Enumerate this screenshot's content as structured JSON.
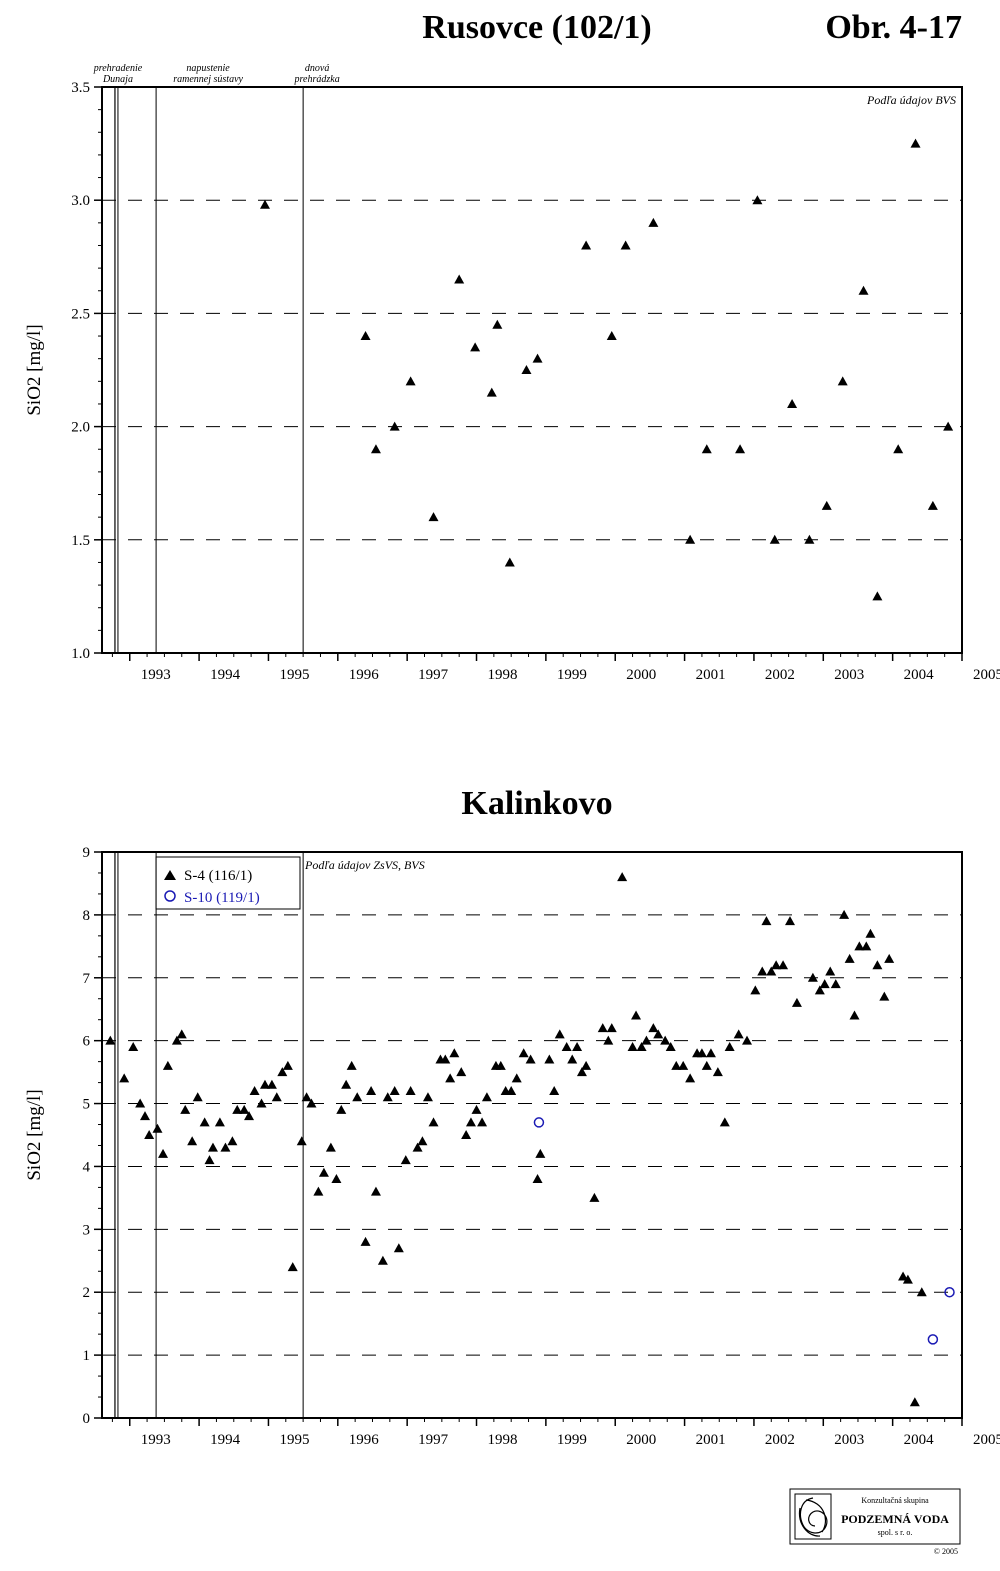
{
  "page": {
    "figure_number": "Obr. 4-17"
  },
  "events": [
    {
      "year": 1992.83,
      "label_lines": [
        "prehradenie",
        "Dunaja"
      ]
    },
    {
      "year": 1993.38,
      "label_lines": [
        "napustenie",
        "ramennej sústavy"
      ]
    },
    {
      "year": 1995.5,
      "label_lines": [
        "dnová",
        "prehrádzka"
      ]
    }
  ],
  "chart_data": [
    {
      "type": "scatter",
      "title": "Rusovce (102/1)",
      "ylabel": "SiO2 [mg/l]",
      "xlabel": "",
      "note": "Podľa údajov BVS",
      "xlim": [
        1992.6,
        2005
      ],
      "ylim": [
        1.0,
        3.5
      ],
      "x_ticks": [
        1993,
        1994,
        1995,
        1996,
        1997,
        1998,
        1999,
        2000,
        2001,
        2002,
        2003,
        2004,
        2005
      ],
      "y_ticks": [
        "1.0",
        "1.5",
        "2.0",
        "2.5",
        "3.0",
        "3.5"
      ],
      "grid": "dashed horizontal",
      "series": [
        {
          "marker": "triangle",
          "color": "#000000",
          "points": [
            [
              1994.95,
              2.98
            ],
            [
              1996.4,
              2.4
            ],
            [
              1996.55,
              1.9
            ],
            [
              1996.82,
              2.0
            ],
            [
              1997.05,
              2.2
            ],
            [
              1997.38,
              1.6
            ],
            [
              1997.75,
              2.65
            ],
            [
              1997.98,
              2.35
            ],
            [
              1998.22,
              2.15
            ],
            [
              1998.3,
              2.45
            ],
            [
              1998.48,
              1.4
            ],
            [
              1998.72,
              2.25
            ],
            [
              1998.88,
              2.3
            ],
            [
              1999.58,
              2.8
            ],
            [
              1999.95,
              2.4
            ],
            [
              2000.15,
              2.8
            ],
            [
              2000.55,
              2.9
            ],
            [
              2001.08,
              1.5
            ],
            [
              2001.32,
              1.9
            ],
            [
              2001.8,
              1.9
            ],
            [
              2002.05,
              3.0
            ],
            [
              2002.3,
              1.5
            ],
            [
              2002.55,
              2.1
            ],
            [
              2002.8,
              1.5
            ],
            [
              2003.05,
              1.65
            ],
            [
              2003.28,
              2.2
            ],
            [
              2003.58,
              2.6
            ],
            [
              2003.78,
              1.25
            ],
            [
              2004.08,
              1.9
            ],
            [
              2004.33,
              3.25
            ],
            [
              2004.58,
              1.65
            ],
            [
              2004.8,
              2.0
            ]
          ]
        }
      ]
    },
    {
      "type": "scatter",
      "title": "Kalinkovo",
      "ylabel": "SiO2 [mg/l]",
      "xlabel": "",
      "note": "Podľa údajov ZsVS, BVS",
      "xlim": [
        1992.6,
        2005
      ],
      "ylim": [
        0,
        9
      ],
      "x_ticks": [
        1993,
        1994,
        1995,
        1996,
        1997,
        1998,
        1999,
        2000,
        2001,
        2002,
        2003,
        2004,
        2005
      ],
      "y_ticks": [
        "0",
        "1",
        "2",
        "3",
        "4",
        "5",
        "6",
        "7",
        "8",
        "9"
      ],
      "grid": "dashed horizontal",
      "legend": "top-left",
      "series": [
        {
          "name": "S-4 (116/1)",
          "marker": "triangle",
          "color": "#000000",
          "points": [
            [
              1992.72,
              6.0
            ],
            [
              1992.92,
              5.4
            ],
            [
              1993.05,
              5.9
            ],
            [
              1993.15,
              5.0
            ],
            [
              1993.22,
              4.8
            ],
            [
              1993.28,
              4.5
            ],
            [
              1993.4,
              4.6
            ],
            [
              1993.48,
              4.2
            ],
            [
              1993.55,
              5.6
            ],
            [
              1993.68,
              6.0
            ],
            [
              1993.75,
              6.1
            ],
            [
              1993.8,
              4.9
            ],
            [
              1993.9,
              4.4
            ],
            [
              1993.98,
              5.1
            ],
            [
              1994.08,
              4.7
            ],
            [
              1994.15,
              4.1
            ],
            [
              1994.2,
              4.3
            ],
            [
              1994.3,
              4.7
            ],
            [
              1994.38,
              4.3
            ],
            [
              1994.48,
              4.4
            ],
            [
              1994.55,
              4.9
            ],
            [
              1994.65,
              4.9
            ],
            [
              1994.72,
              4.8
            ],
            [
              1994.8,
              5.2
            ],
            [
              1994.9,
              5.0
            ],
            [
              1994.95,
              5.3
            ],
            [
              1995.05,
              5.3
            ],
            [
              1995.12,
              5.1
            ],
            [
              1995.2,
              5.5
            ],
            [
              1995.28,
              5.6
            ],
            [
              1995.35,
              2.4
            ],
            [
              1995.48,
              4.4
            ],
            [
              1995.55,
              5.1
            ],
            [
              1995.62,
              5.0
            ],
            [
              1995.72,
              3.6
            ],
            [
              1995.8,
              3.9
            ],
            [
              1995.9,
              4.3
            ],
            [
              1995.98,
              3.8
            ],
            [
              1996.05,
              4.9
            ],
            [
              1996.12,
              5.3
            ],
            [
              1996.2,
              5.6
            ],
            [
              1996.28,
              5.1
            ],
            [
              1996.4,
              2.8
            ],
            [
              1996.48,
              5.2
            ],
            [
              1996.55,
              3.6
            ],
            [
              1996.65,
              2.5
            ],
            [
              1996.72,
              5.1
            ],
            [
              1996.82,
              5.2
            ],
            [
              1996.88,
              2.7
            ],
            [
              1996.98,
              4.1
            ],
            [
              1997.05,
              5.2
            ],
            [
              1997.15,
              4.3
            ],
            [
              1997.22,
              4.4
            ],
            [
              1997.3,
              5.1
            ],
            [
              1997.38,
              4.7
            ],
            [
              1997.48,
              5.7
            ],
            [
              1997.55,
              5.7
            ],
            [
              1997.62,
              5.4
            ],
            [
              1997.68,
              5.8
            ],
            [
              1997.78,
              5.5
            ],
            [
              1997.85,
              4.5
            ],
            [
              1997.92,
              4.7
            ],
            [
              1998.0,
              4.9
            ],
            [
              1998.08,
              4.7
            ],
            [
              1998.15,
              5.1
            ],
            [
              1998.28,
              5.6
            ],
            [
              1998.35,
              5.6
            ],
            [
              1998.42,
              5.2
            ],
            [
              1998.5,
              5.2
            ],
            [
              1998.58,
              5.4
            ],
            [
              1998.68,
              5.8
            ],
            [
              1998.78,
              5.7
            ],
            [
              1998.88,
              3.8
            ],
            [
              1998.92,
              4.2
            ],
            [
              1999.05,
              5.7
            ],
            [
              1999.12,
              5.2
            ],
            [
              1999.2,
              6.1
            ],
            [
              1999.3,
              5.9
            ],
            [
              1999.38,
              5.7
            ],
            [
              1999.45,
              5.9
            ],
            [
              1999.52,
              5.5
            ],
            [
              1999.58,
              5.6
            ],
            [
              1999.7,
              3.5
            ],
            [
              1999.82,
              6.2
            ],
            [
              1999.9,
              6.0
            ],
            [
              1999.95,
              6.2
            ],
            [
              2000.1,
              8.6
            ],
            [
              2000.25,
              5.9
            ],
            [
              2000.3,
              6.4
            ],
            [
              2000.38,
              5.9
            ],
            [
              2000.45,
              6.0
            ],
            [
              2000.55,
              6.2
            ],
            [
              2000.62,
              6.1
            ],
            [
              2000.72,
              6.0
            ],
            [
              2000.8,
              5.9
            ],
            [
              2000.88,
              5.6
            ],
            [
              2000.98,
              5.6
            ],
            [
              2001.08,
              5.4
            ],
            [
              2001.18,
              5.8
            ],
            [
              2001.25,
              5.8
            ],
            [
              2001.32,
              5.6
            ],
            [
              2001.38,
              5.8
            ],
            [
              2001.48,
              5.5
            ],
            [
              2001.58,
              4.7
            ],
            [
              2001.65,
              5.9
            ],
            [
              2001.78,
              6.1
            ],
            [
              2001.9,
              6.0
            ],
            [
              2002.02,
              6.8
            ],
            [
              2002.12,
              7.1
            ],
            [
              2002.18,
              7.9
            ],
            [
              2002.25,
              7.1
            ],
            [
              2002.32,
              7.2
            ],
            [
              2002.42,
              7.2
            ],
            [
              2002.52,
              7.9
            ],
            [
              2002.62,
              6.6
            ],
            [
              2002.85,
              7.0
            ],
            [
              2002.95,
              6.8
            ],
            [
              2003.02,
              6.9
            ],
            [
              2003.1,
              7.1
            ],
            [
              2003.18,
              6.9
            ],
            [
              2003.3,
              8.0
            ],
            [
              2003.38,
              7.3
            ],
            [
              2003.45,
              6.4
            ],
            [
              2003.52,
              7.5
            ],
            [
              2003.62,
              7.5
            ],
            [
              2003.68,
              7.7
            ],
            [
              2003.78,
              7.2
            ],
            [
              2003.88,
              6.7
            ],
            [
              2003.95,
              7.3
            ],
            [
              2004.15,
              2.25
            ],
            [
              2004.22,
              2.2
            ],
            [
              2004.32,
              0.25
            ],
            [
              2004.42,
              2.0
            ]
          ]
        },
        {
          "name": "S-10 (119/1)",
          "marker": "circle",
          "color": "#1a1ab4",
          "points": [
            [
              1998.9,
              4.7
            ],
            [
              2004.58,
              1.25
            ],
            [
              2004.82,
              2.0
            ]
          ]
        }
      ]
    }
  ],
  "logo": {
    "line1": "Konzultačná skupina",
    "line2": "PODZEMNÁ VODA",
    "line3": "spol. s r. o.",
    "copyright": "© 2005"
  }
}
